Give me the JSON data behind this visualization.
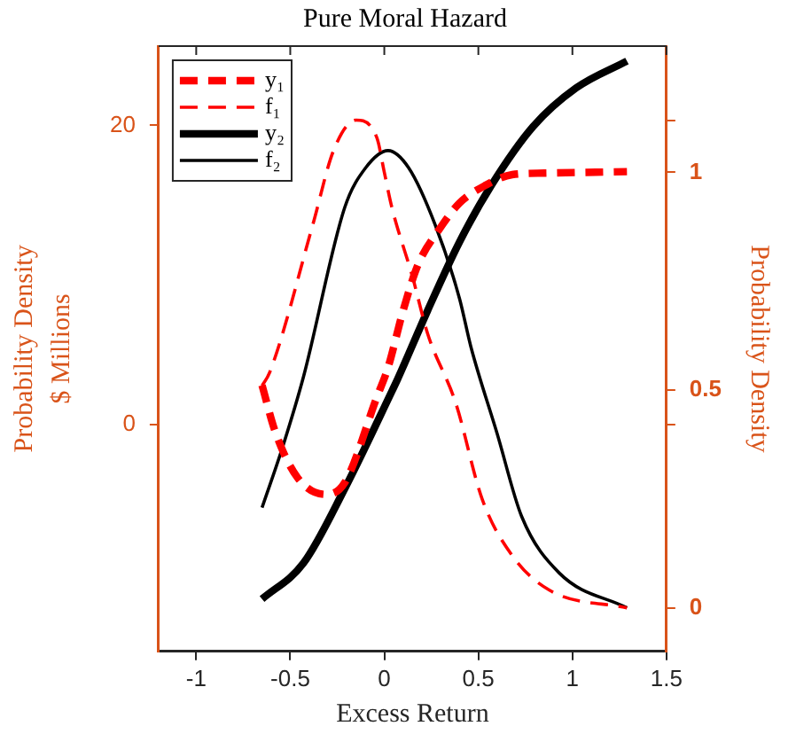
{
  "chart_data": {
    "type": "line",
    "title": "Pure Moral Hazard",
    "xlabel": "Excess Return",
    "ylabel": "$ Millions",
    "y2label": "Probability Density",
    "annotations": [
      "Probability Density"
    ],
    "xlim": [
      -1.2,
      1.5
    ],
    "xticks": [
      -1,
      -0.5,
      0,
      0.5,
      1,
      1.5
    ],
    "ylim": [
      -15.2,
      25.3
    ],
    "yticks": [
      0,
      20
    ],
    "y2lim": [
      -0.1,
      1.29
    ],
    "y2ticks": [
      0,
      {
        "value": 0.42,
        "label": null
      },
      0.5,
      1,
      {
        "value": 1.12,
        "label": null
      }
    ],
    "grid": false,
    "legend": "top left",
    "marker": "none",
    "series": [
      {
        "name": "y₁",
        "color": "#ff0000",
        "line_style": "dashed",
        "x": [
          -0.65,
          -0.58,
          -0.46,
          -0.31,
          -0.21,
          -0.04,
          0.02,
          0.1,
          0.18,
          0.29,
          0.4,
          0.54,
          0.68,
          0.85,
          1.29
        ],
        "values": [
          2.6,
          -0.5,
          -3.6,
          -4.7,
          -3.9,
          1.8,
          3.8,
          7.6,
          10.7,
          13.0,
          14.8,
          16.0,
          16.7,
          16.8,
          16.9
        ]
      },
      {
        "name": "f₁",
        "color": "#ff0000",
        "line_style": "dashed",
        "axis": "y2",
        "x": [
          -0.65,
          -0.61,
          -0.38,
          -0.27,
          -0.15,
          -0.04,
          0.0,
          0.04,
          0.15,
          0.23,
          0.38,
          0.52,
          0.68,
          0.88,
          1.29
        ],
        "values": [
          0.51,
          0.54,
          0.88,
          1.05,
          1.12,
          1.08,
          1.0,
          0.92,
          0.76,
          0.63,
          0.47,
          0.25,
          0.12,
          0.04,
          0
        ]
      },
      {
        "name": "y₂",
        "color": "#000000",
        "line_style": "solid",
        "x": [
          -0.65,
          -0.43,
          -0.21,
          0.04,
          0.07,
          0.23,
          0.4,
          0.57,
          0.79,
          1.02,
          1.29
        ],
        "values": [
          -11.7,
          -9.3,
          -4.3,
          2.2,
          3.0,
          7.6,
          12.2,
          16.0,
          19.9,
          22.5,
          24.3
        ]
      },
      {
        "name": "f₂",
        "color": "#000000",
        "line_style": "solid",
        "axis": "y2",
        "x": [
          -0.65,
          -0.54,
          -0.43,
          -0.21,
          -0.1,
          0.02,
          0.13,
          0.27,
          0.4,
          0.46,
          0.6,
          0.73,
          0.93,
          1.29
        ],
        "values": [
          0.23,
          0.37,
          0.53,
          0.92,
          1.01,
          1.05,
          1.01,
          0.88,
          0.71,
          0.6,
          0.4,
          0.21,
          0.08,
          0
        ]
      }
    ]
  }
}
